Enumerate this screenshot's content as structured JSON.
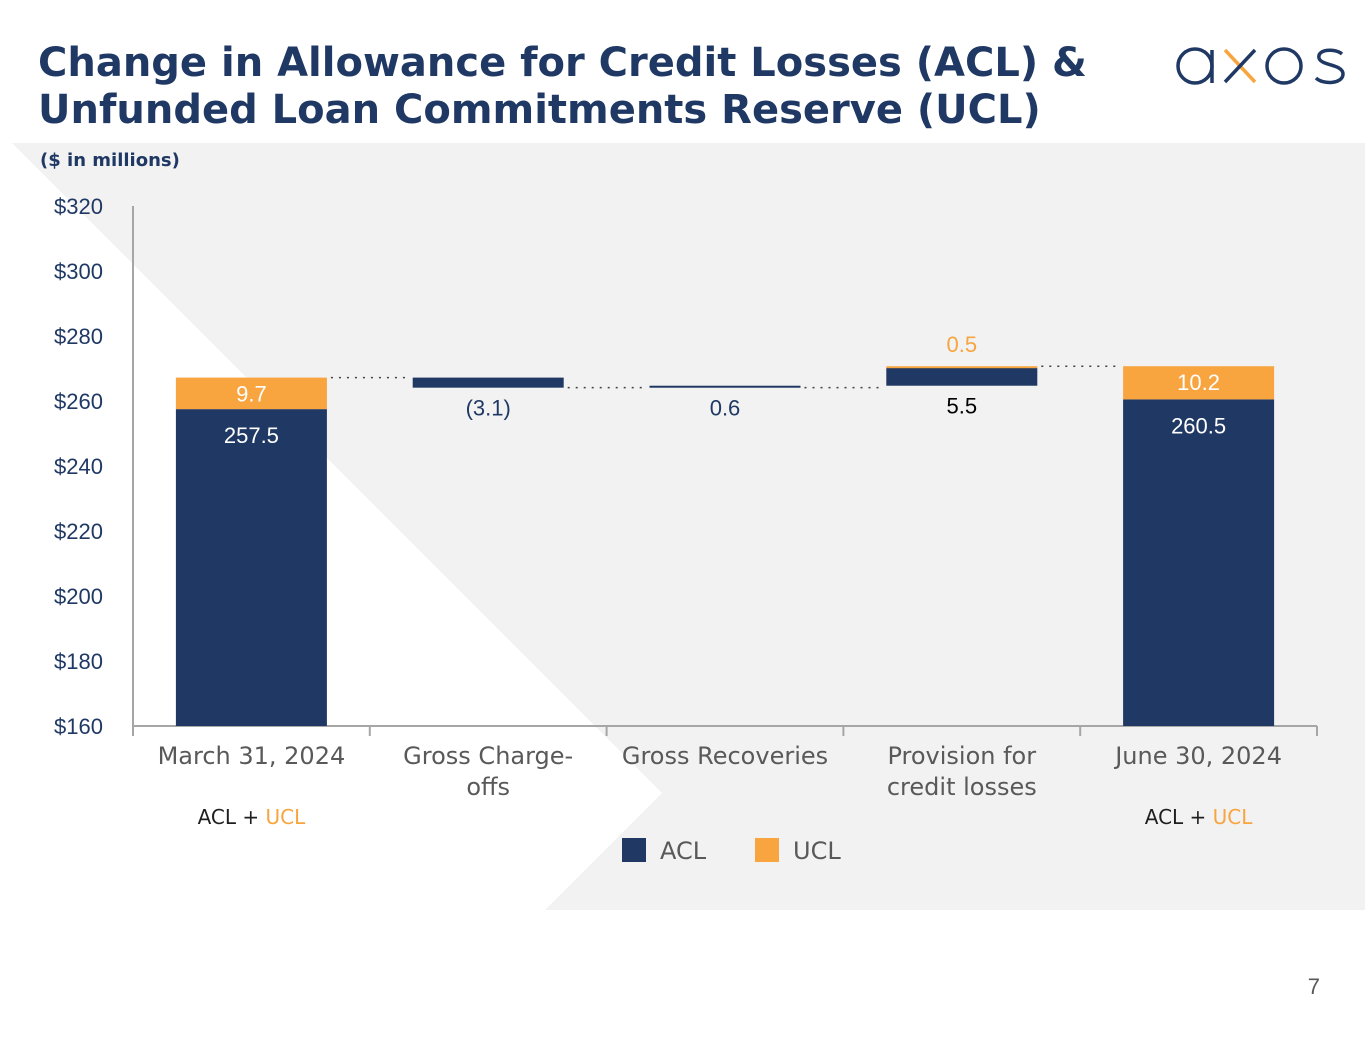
{
  "slide": {
    "title_line1": "Change in Allowance for Credit Losses (ACL) &",
    "title_line2": "Unfunded Loan Commitments Reserve (UCL)",
    "units": "($ in millions)",
    "page_number": "7",
    "logo_text": "axos"
  },
  "colors": {
    "navy": "#203864",
    "orange": "#f8a540",
    "axis": "#a6a6a6",
    "tick_text": "#1f3864",
    "category_text": "#595959",
    "background_panel": "#f2f2f2"
  },
  "chart_data": {
    "type": "bar",
    "subtype": "waterfall-stacked",
    "title": "Change in Allowance for Credit Losses (ACL) & Unfunded Loan Commitments Reserve (UCL)",
    "ylabel": "($ in millions)",
    "ylim": [
      160,
      320
    ],
    "ytick_step": 20,
    "yticks": [
      "$160",
      "$180",
      "$200",
      "$220",
      "$240",
      "$260",
      "$280",
      "$300",
      "$320"
    ],
    "grid": false,
    "legend_position": "bottom-center",
    "categories": [
      "March 31, 2024",
      "Gross Charge-offs",
      "Gross Recoveries",
      "Provision for credit losses",
      "June 30, 2024"
    ],
    "category_lines": [
      [
        "March 31, 2024"
      ],
      [
        "Gross Charge-",
        "offs"
      ],
      [
        "Gross Recoveries"
      ],
      [
        "Provision for",
        "credit losses"
      ],
      [
        "June 30, 2024"
      ]
    ],
    "sublabels": [
      {
        "category": 0,
        "acl": "ACL",
        "plus": " + ",
        "ucl": "UCL"
      },
      {
        "category": 4,
        "acl": "ACL",
        "plus": " + ",
        "ucl": "UCL"
      }
    ],
    "series": [
      {
        "name": "ACL",
        "color": "#203864"
      },
      {
        "name": "UCL",
        "color": "#f8a540"
      }
    ],
    "steps": [
      {
        "category": "March 31, 2024",
        "kind": "total",
        "acl": 257.5,
        "ucl": 9.7,
        "acl_label": "257.5",
        "ucl_label": "9.7"
      },
      {
        "category": "Gross Charge-offs",
        "kind": "delta",
        "series": "ACL",
        "value": -3.1,
        "label": "(3.1)"
      },
      {
        "category": "Gross Recoveries",
        "kind": "delta",
        "series": "ACL",
        "value": 0.6,
        "label": "0.6"
      },
      {
        "category": "Provision for credit losses",
        "kind": "delta",
        "acl": 5.5,
        "ucl": 0.5,
        "acl_label": "5.5",
        "ucl_label": "0.5"
      },
      {
        "category": "June 30, 2024",
        "kind": "total",
        "acl": 260.5,
        "ucl": 10.2,
        "acl_label": "260.5",
        "ucl_label": "10.2"
      }
    ]
  }
}
